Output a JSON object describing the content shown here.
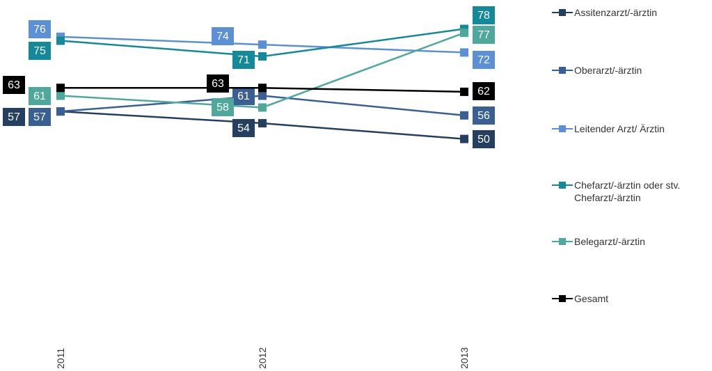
{
  "chart_data": {
    "type": "line",
    "categories": [
      "2011",
      "2012",
      "2013"
    ],
    "ylim": [
      0,
      85
    ],
    "series": [
      {
        "name": "Assitenzarzt/-ärztin",
        "color": "#243f60",
        "values": [
          57,
          54,
          50
        ]
      },
      {
        "name": "Oberarzt/-ärztin",
        "color": "#3a5f94",
        "values": [
          57,
          61,
          56
        ]
      },
      {
        "name": "Leitender Arzt/ Ärztin",
        "color": "#5b8fd6",
        "values": [
          76,
          74,
          72
        ]
      },
      {
        "name": "Chefarzt/-ärztin oder stv. Chefarzt/-ärztin",
        "color": "#13899a",
        "values": [
          75,
          71,
          78
        ]
      },
      {
        "name": "Belegarzt/-ärztin",
        "color": "#4ea89c",
        "values": [
          61,
          58,
          77
        ]
      },
      {
        "name": "Gesamt",
        "color": "#000000",
        "values": [
          63,
          63,
          62
        ]
      }
    ],
    "legend": "right"
  }
}
